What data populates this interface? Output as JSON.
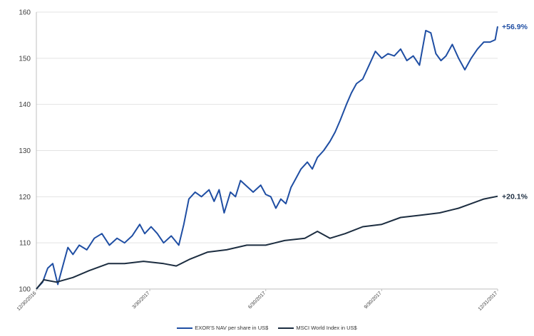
{
  "colors": {
    "exor": "#1f4ea3",
    "msci": "#1c2d40",
    "grid": "#e3e3e3",
    "axis": "#bfbfbf"
  },
  "chart_data": {
    "type": "line",
    "title": "",
    "xlabel": "",
    "ylabel": "",
    "ylim": [
      100,
      160
    ],
    "yticks": [
      100,
      110,
      120,
      130,
      140,
      150,
      160
    ],
    "xlim": [
      "2016-12-30",
      "2017-12-31"
    ],
    "xtick_labels": [
      "12/30/2016",
      "3/30/2017",
      "6/30/2017",
      "9/30/2017",
      "12/31/2017"
    ],
    "xtick_dates": [
      "2016-12-30",
      "2017-03-30",
      "2017-06-30",
      "2017-09-30",
      "2017-12-31"
    ],
    "grid": "horizontal",
    "legend": "bottom",
    "annotations": [
      {
        "text": "+56.9%",
        "series": "EXOR'S NAV per share in US$"
      },
      {
        "text": "+20.1%",
        "series": "MSCI World Index in US$"
      }
    ],
    "series": [
      {
        "name": "EXOR'S NAV per share in US$",
        "color": "#1f4ea3",
        "points": [
          [
            "2016-12-30",
            100.0
          ],
          [
            "2017-01-04",
            101.5
          ],
          [
            "2017-01-08",
            104.5
          ],
          [
            "2017-01-12",
            105.5
          ],
          [
            "2017-01-16",
            101.0
          ],
          [
            "2017-01-20",
            105.0
          ],
          [
            "2017-01-24",
            109.0
          ],
          [
            "2017-01-28",
            107.5
          ],
          [
            "2017-02-02",
            109.5
          ],
          [
            "2017-02-08",
            108.5
          ],
          [
            "2017-02-14",
            111.0
          ],
          [
            "2017-02-20",
            112.0
          ],
          [
            "2017-02-26",
            109.5
          ],
          [
            "2017-03-04",
            111.0
          ],
          [
            "2017-03-10",
            110.0
          ],
          [
            "2017-03-16",
            111.5
          ],
          [
            "2017-03-22",
            114.0
          ],
          [
            "2017-03-26",
            112.0
          ],
          [
            "2017-03-31",
            113.5
          ],
          [
            "2017-04-05",
            112.0
          ],
          [
            "2017-04-10",
            110.0
          ],
          [
            "2017-04-16",
            111.5
          ],
          [
            "2017-04-22",
            109.5
          ],
          [
            "2017-04-26",
            114.0
          ],
          [
            "2017-04-30",
            119.5
          ],
          [
            "2017-05-05",
            121.0
          ],
          [
            "2017-05-10",
            120.0
          ],
          [
            "2017-05-16",
            121.5
          ],
          [
            "2017-05-20",
            119.0
          ],
          [
            "2017-05-24",
            121.5
          ],
          [
            "2017-05-28",
            116.5
          ],
          [
            "2017-06-02",
            121.0
          ],
          [
            "2017-06-06",
            120.0
          ],
          [
            "2017-06-10",
            123.5
          ],
          [
            "2017-06-16",
            122.0
          ],
          [
            "2017-06-20",
            121.0
          ],
          [
            "2017-06-26",
            122.5
          ],
          [
            "2017-06-30",
            120.5
          ],
          [
            "2017-07-04",
            120.0
          ],
          [
            "2017-07-08",
            117.5
          ],
          [
            "2017-07-12",
            119.5
          ],
          [
            "2017-07-16",
            118.5
          ],
          [
            "2017-07-20",
            122.0
          ],
          [
            "2017-07-24",
            124.0
          ],
          [
            "2017-07-28",
            126.0
          ],
          [
            "2017-08-02",
            127.5
          ],
          [
            "2017-08-06",
            126.0
          ],
          [
            "2017-08-10",
            128.5
          ],
          [
            "2017-08-15",
            130.0
          ],
          [
            "2017-08-20",
            132.0
          ],
          [
            "2017-08-24",
            134.0
          ],
          [
            "2017-08-28",
            136.5
          ],
          [
            "2017-09-02",
            140.0
          ],
          [
            "2017-09-06",
            142.5
          ],
          [
            "2017-09-10",
            144.5
          ],
          [
            "2017-09-15",
            145.5
          ],
          [
            "2017-09-20",
            148.5
          ],
          [
            "2017-09-25",
            151.5
          ],
          [
            "2017-09-30",
            150.0
          ],
          [
            "2017-10-05",
            151.0
          ],
          [
            "2017-10-10",
            150.5
          ],
          [
            "2017-10-15",
            152.0
          ],
          [
            "2017-10-20",
            149.5
          ],
          [
            "2017-10-25",
            150.5
          ],
          [
            "2017-10-30",
            148.5
          ],
          [
            "2017-11-04",
            156.0
          ],
          [
            "2017-11-08",
            155.5
          ],
          [
            "2017-11-12",
            151.0
          ],
          [
            "2017-11-16",
            149.5
          ],
          [
            "2017-11-20",
            150.5
          ],
          [
            "2017-11-25",
            153.0
          ],
          [
            "2017-11-30",
            150.0
          ],
          [
            "2017-12-05",
            147.5
          ],
          [
            "2017-12-10",
            150.0
          ],
          [
            "2017-12-15",
            152.0
          ],
          [
            "2017-12-20",
            153.5
          ],
          [
            "2017-12-25",
            153.5
          ],
          [
            "2017-12-29",
            154.0
          ],
          [
            "2017-12-31",
            156.9
          ]
        ]
      },
      {
        "name": "MSCI World Index in US$",
        "color": "#1c2d40",
        "points": [
          [
            "2016-12-30",
            100.0
          ],
          [
            "2017-01-05",
            102.0
          ],
          [
            "2017-01-15",
            101.5
          ],
          [
            "2017-01-28",
            102.5
          ],
          [
            "2017-02-10",
            104.0
          ],
          [
            "2017-02-25",
            105.5
          ],
          [
            "2017-03-10",
            105.5
          ],
          [
            "2017-03-25",
            106.0
          ],
          [
            "2017-04-10",
            105.5
          ],
          [
            "2017-04-20",
            105.0
          ],
          [
            "2017-05-01",
            106.5
          ],
          [
            "2017-05-15",
            108.0
          ],
          [
            "2017-05-30",
            108.5
          ],
          [
            "2017-06-15",
            109.5
          ],
          [
            "2017-06-30",
            109.5
          ],
          [
            "2017-07-15",
            110.5
          ],
          [
            "2017-07-31",
            111.0
          ],
          [
            "2017-08-10",
            112.5
          ],
          [
            "2017-08-20",
            111.0
          ],
          [
            "2017-09-01",
            112.0
          ],
          [
            "2017-09-15",
            113.5
          ],
          [
            "2017-09-30",
            114.0
          ],
          [
            "2017-10-15",
            115.5
          ],
          [
            "2017-10-31",
            116.0
          ],
          [
            "2017-11-15",
            116.5
          ],
          [
            "2017-11-30",
            117.5
          ],
          [
            "2017-12-10",
            118.5
          ],
          [
            "2017-12-20",
            119.5
          ],
          [
            "2017-12-31",
            120.1
          ]
        ]
      }
    ]
  }
}
